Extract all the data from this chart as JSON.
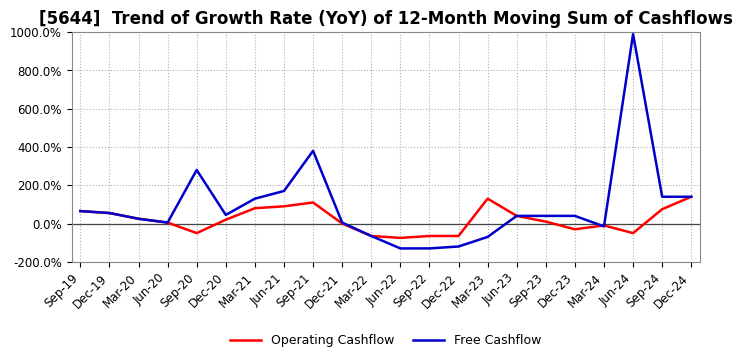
{
  "title": "[5644]  Trend of Growth Rate (YoY) of 12-Month Moving Sum of Cashflows",
  "x_labels": [
    "Sep-19",
    "Dec-19",
    "Mar-20",
    "Jun-20",
    "Sep-20",
    "Dec-20",
    "Mar-21",
    "Jun-21",
    "Sep-21",
    "Dec-21",
    "Mar-22",
    "Jun-22",
    "Sep-22",
    "Dec-22",
    "Mar-23",
    "Jun-23",
    "Sep-23",
    "Dec-23",
    "Mar-24",
    "Jun-24",
    "Sep-24",
    "Dec-24"
  ],
  "operating_cashflow": [
    65,
    55,
    25,
    5,
    -50,
    20,
    80,
    90,
    110,
    0,
    -65,
    -75,
    -65,
    -65,
    130,
    40,
    10,
    -30,
    -10,
    -50,
    75,
    140
  ],
  "free_cashflow": [
    65,
    55,
    25,
    5,
    280,
    45,
    130,
    170,
    380,
    5,
    -65,
    -130,
    -130,
    -120,
    -70,
    40,
    40,
    40,
    -15,
    990,
    140,
    140
  ],
  "operating_color": "#ff0000",
  "free_color": "#0000cc",
  "ylim": [
    -200,
    1000
  ],
  "yticks": [
    -200,
    0,
    200,
    400,
    600,
    800,
    1000
  ],
  "background_color": "#ffffff",
  "grid_color": "#b0b0b0",
  "legend_op": "Operating Cashflow",
  "legend_free": "Free Cashflow",
  "title_fontsize": 12,
  "tick_fontsize": 8.5,
  "legend_fontsize": 9,
  "linewidth": 1.8
}
